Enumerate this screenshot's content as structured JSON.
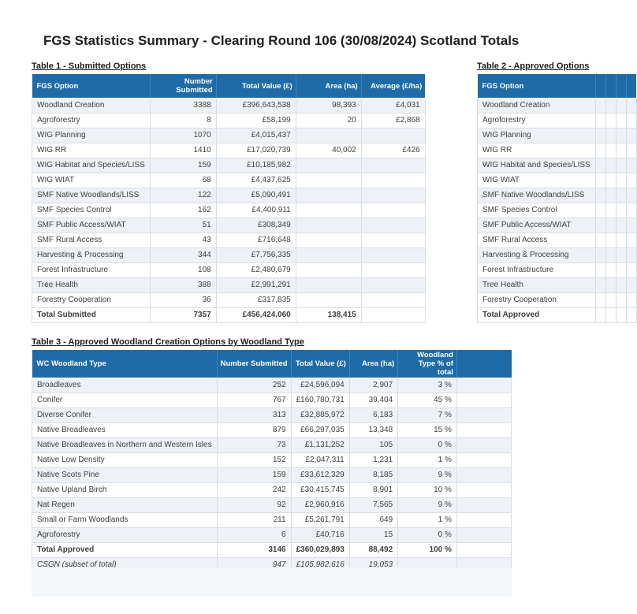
{
  "page": {
    "title": "FGS Statistics Summary - Clearing Round 106 (30/08/2024) Scotland Totals"
  },
  "colors": {
    "header_blue": "#1e6ba8",
    "row_stripe": "#eef2f7",
    "grid_line": "#d9dee3",
    "total_rule": "#5f6b76",
    "sheet_background": "#f3f7fa",
    "text": "#404040"
  },
  "table1": {
    "heading": "Table 1 - Submitted Options",
    "columns": [
      "FGS Option",
      "Number Submitted",
      "Total Value (£)",
      "Area (ha)",
      "Average (£/ha)"
    ],
    "rows": [
      [
        "Woodland Creation",
        "3388",
        "£396,643,538",
        "98,393",
        "£4,031"
      ],
      [
        "Agroforestry",
        "8",
        "£58,199",
        "20",
        "£2,868"
      ],
      [
        "WIG Planning",
        "1070",
        "£4,015,437",
        "",
        ""
      ],
      [
        "WIG RR",
        "1410",
        "£17,020,739",
        "40,002",
        "£426"
      ],
      [
        "WIG Habitat and Species/LISS",
        "159",
        "£10,185,982",
        "",
        ""
      ],
      [
        "WIG WIAT",
        "68",
        "£4,437,625",
        "",
        ""
      ],
      [
        "SMF Native Woodlands/LISS",
        "122",
        "£5,090,491",
        "",
        ""
      ],
      [
        "SMF Species Control",
        "162",
        "£4,400,911",
        "",
        ""
      ],
      [
        "SMF Public Access/WIAT",
        "51",
        "£308,349",
        "",
        ""
      ],
      [
        "SMF Rural Access",
        "43",
        "£716,648",
        "",
        ""
      ],
      [
        "Harvesting & Processing",
        "344",
        "£7,756,335",
        "",
        ""
      ],
      [
        "Forest Infrastructure",
        "108",
        "£2,480,679",
        "",
        ""
      ],
      [
        "Tree Health",
        "388",
        "£2,991,291",
        "",
        ""
      ],
      [
        "Forestry Cooperation",
        "36",
        "£317,835",
        "",
        ""
      ]
    ],
    "total_row": [
      "Total Submitted",
      "7357",
      "£456,424,060",
      "138,415",
      ""
    ]
  },
  "table2": {
    "heading": "Table 2 - Approved Options",
    "columns": [
      "FGS Option",
      "",
      "",
      "",
      ""
    ],
    "rows": [
      [
        "Woodland Creation",
        "",
        "",
        "",
        ""
      ],
      [
        "Agroforestry",
        "",
        "",
        "",
        ""
      ],
      [
        "WIG Planning",
        "",
        "",
        "",
        ""
      ],
      [
        "WIG RR",
        "",
        "",
        "",
        ""
      ],
      [
        "WIG Habitat and Species/LISS",
        "",
        "",
        "",
        ""
      ],
      [
        "WIG WIAT",
        "",
        "",
        "",
        ""
      ],
      [
        "SMF Native Woodlands/LISS",
        "",
        "",
        "",
        ""
      ],
      [
        "SMF Species Control",
        "",
        "",
        "",
        ""
      ],
      [
        "SMF Public Access/WIAT",
        "",
        "",
        "",
        ""
      ],
      [
        "SMF Rural Access",
        "",
        "",
        "",
        ""
      ],
      [
        "Harvesting & Processing",
        "",
        "",
        "",
        ""
      ],
      [
        "Forest Infrastructure",
        "",
        "",
        "",
        ""
      ],
      [
        "Tree Health",
        "",
        "",
        "",
        ""
      ],
      [
        "Forestry Cooperation",
        "",
        "",
        "",
        ""
      ]
    ],
    "total_row": [
      "Total Approved",
      "",
      "",
      "",
      ""
    ]
  },
  "table3": {
    "heading": "Table 3 - Approved Woodland Creation Options by Woodland Type",
    "columns": [
      "WC Woodland Type",
      "Number Submitted",
      "Total Value (£)",
      "Area (ha)",
      "Woodland Type % of total",
      ""
    ],
    "rows": [
      [
        "Broadleaves",
        "252",
        "£24,596,094",
        "2,907",
        "3 %",
        ""
      ],
      [
        "Conifer",
        "767",
        "£160,780,731",
        "39,404",
        "45 %",
        ""
      ],
      [
        "Diverse Conifer",
        "313",
        "£32,885,972",
        "6,183",
        "7 %",
        ""
      ],
      [
        "Native Broadleaves",
        "879",
        "£66,297,035",
        "13,348",
        "15 %",
        ""
      ],
      [
        "Native Broadleaves in Northern and Western Isles",
        "73",
        "£1,131,252",
        "105",
        "0 %",
        ""
      ],
      [
        "Native Low Density",
        "152",
        "£2,047,311",
        "1,231",
        "1 %",
        ""
      ],
      [
        "Native Scots Pine",
        "159",
        "£33,612,329",
        "8,185",
        "9 %",
        ""
      ],
      [
        "Native Upland Birch",
        "242",
        "£30,415,745",
        "8,901",
        "10 %",
        ""
      ],
      [
        "Nat Regen",
        "92",
        "£2,960,916",
        "7,565",
        "9 %",
        ""
      ],
      [
        "Small or Farm Woodlands",
        "211",
        "£5,261,791",
        "649",
        "1 %",
        ""
      ],
      [
        "Agroforestry",
        "6",
        "£40,716",
        "15",
        "0 %",
        ""
      ]
    ],
    "total_row": [
      "Total Approved",
      "3146",
      "£360,029,893",
      "88,492",
      "100 %",
      ""
    ],
    "csgn_row": [
      "CSGN (subset of total)",
      "947",
      "£105,982,616",
      "19,053",
      "",
      ""
    ]
  }
}
